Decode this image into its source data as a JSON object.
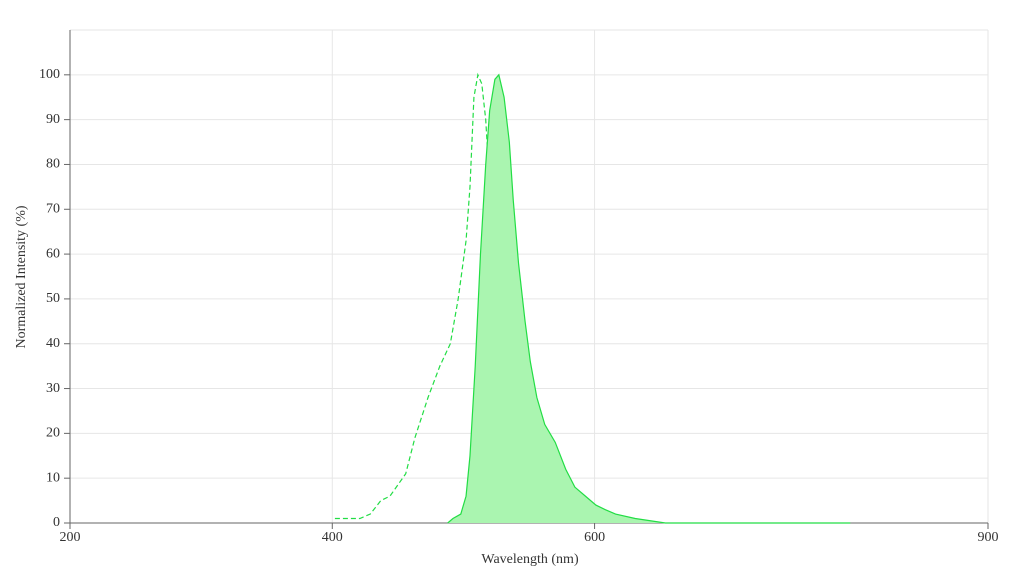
{
  "chart_data": {
    "type": "line",
    "x_label": "Wavelength (nm)",
    "y_label": "Normalized Intensity (%)",
    "xlim": [
      200,
      900
    ],
    "xticks": [
      200,
      400,
      600,
      900
    ],
    "ylim": [
      0,
      110
    ],
    "yticks": [
      0,
      10,
      20,
      30,
      40,
      50,
      60,
      70,
      80,
      90,
      100
    ],
    "grid": true,
    "series": [
      {
        "color": "#22dd44",
        "style": "dashed",
        "x": [
          402,
          421,
          429,
          437,
          444,
          456,
          463,
          473,
          482,
          490,
          496,
          502,
          505,
          508,
          511,
          514,
          517,
          520,
          524,
          528,
          532,
          536,
          540,
          543
        ],
        "values": [
          1,
          1,
          2,
          5,
          6,
          11,
          19,
          28,
          35,
          40,
          50,
          63,
          75,
          95,
          100,
          98,
          90,
          75,
          55,
          38,
          20,
          8,
          3,
          1
        ]
      },
      {
        "color": "#22dd44",
        "fill": "#aaf5b0",
        "style": "filled",
        "x": [
          488,
          492,
          498,
          502,
          505,
          509,
          513,
          517,
          520,
          524,
          527,
          531,
          535,
          538,
          542,
          547,
          551,
          556,
          562,
          570,
          578,
          585,
          593,
          601,
          608,
          616,
          631,
          654,
          795
        ],
        "values": [
          0,
          1,
          2,
          6,
          15,
          35,
          60,
          80,
          92,
          99,
          100,
          95,
          85,
          72,
          58,
          45,
          36,
          28,
          22,
          18,
          12,
          8,
          6,
          4,
          3,
          2,
          1,
          0,
          0
        ]
      }
    ]
  }
}
